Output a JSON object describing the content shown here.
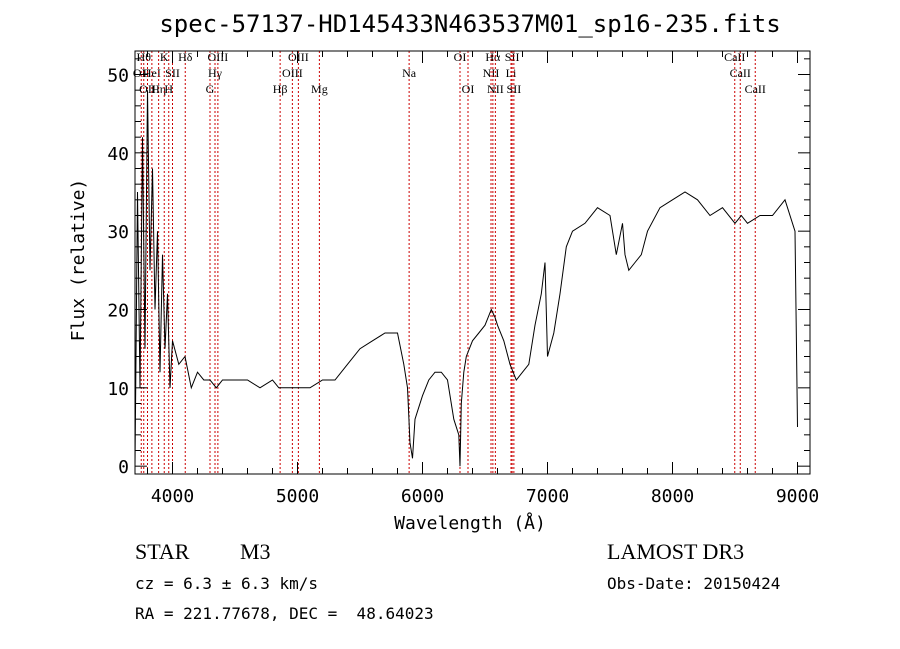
{
  "chart_data": {
    "type": "line",
    "title": "spec-57137-HD145433N463537M01_sp16-235.fits",
    "xlabel": "Wavelength (Å)",
    "ylabel": "Flux (relative)",
    "xlim": [
      3700,
      9100
    ],
    "ylim": [
      -1,
      53
    ],
    "xticks": [
      4000,
      5000,
      6000,
      7000,
      8000,
      9000
    ],
    "yticks": [
      0,
      10,
      20,
      30,
      40,
      50
    ],
    "grid": false,
    "series": [
      {
        "x": [
          3700,
          3720,
          3740,
          3760,
          3780,
          3800,
          3820,
          3840,
          3860,
          3880,
          3900,
          3920,
          3940,
          3960,
          3980,
          4000,
          4050,
          4100,
          4150,
          4200,
          4250,
          4300,
          4350,
          4400,
          4500,
          4600,
          4700,
          4800,
          4850,
          4900,
          5000,
          5100,
          5200,
          5300,
          5400,
          5500,
          5600,
          5700,
          5800,
          5850,
          5880,
          5900,
          5920,
          5940,
          5960,
          6000,
          6050,
          6100,
          6150,
          6200,
          6250,
          6290,
          6300,
          6310,
          6330,
          6350,
          6400,
          6450,
          6500,
          6550,
          6580,
          6600,
          6650,
          6700,
          6750,
          6800,
          6850,
          6900,
          6950,
          6980,
          7000,
          7050,
          7100,
          7150,
          7200,
          7300,
          7400,
          7500,
          7550,
          7600,
          7620,
          7650,
          7700,
          7750,
          7800,
          7900,
          8000,
          8100,
          8200,
          8300,
          8400,
          8500,
          8550,
          8600,
          8700,
          8800,
          8900,
          8980,
          9000
        ],
        "values": [
          0,
          35,
          10,
          42,
          15,
          48,
          25,
          38,
          20,
          30,
          12,
          27,
          15,
          22,
          10,
          16,
          13,
          14,
          10,
          12,
          11,
          11,
          10,
          11,
          11,
          11,
          10,
          11,
          10,
          10,
          10,
          10,
          11,
          11,
          13,
          15,
          16,
          17,
          17,
          13,
          10,
          3,
          1,
          6,
          7,
          9,
          11,
          12,
          12,
          11,
          6,
          4,
          0,
          8,
          12,
          14,
          16,
          17,
          18,
          20,
          19,
          18,
          16,
          13,
          11,
          12,
          13,
          18,
          22,
          26,
          14,
          17,
          22,
          28,
          30,
          31,
          33,
          32,
          27,
          31,
          27,
          25,
          26,
          27,
          30,
          33,
          34,
          35,
          34,
          32,
          33,
          31,
          32,
          31,
          32,
          32,
          34,
          30,
          5
        ]
      }
    ],
    "line_labels": [
      {
        "wavelength": 3750,
        "text": "OII",
        "row": 1
      },
      {
        "wavelength": 3770,
        "text": "Hθ",
        "row": 0
      },
      {
        "wavelength": 3800,
        "text": "OII",
        "row": 2
      },
      {
        "wavelength": 3835,
        "text": "HeI",
        "row": 1
      },
      {
        "wavelength": 3889,
        "text": "Hη",
        "row": 2
      },
      {
        "wavelength": 3934,
        "text": "K",
        "row": 0
      },
      {
        "wavelength": 3970,
        "text": "H",
        "row": 2
      },
      {
        "wavelength": 4000,
        "text": "SII",
        "row": 1
      },
      {
        "wavelength": 4102,
        "text": "Hδ",
        "row": 0
      },
      {
        "wavelength": 4300,
        "text": "G",
        "row": 2
      },
      {
        "wavelength": 4340,
        "text": "Hγ",
        "row": 1
      },
      {
        "wavelength": 4363,
        "text": "OIII",
        "row": 0
      },
      {
        "wavelength": 4861,
        "text": "Hβ",
        "row": 2
      },
      {
        "wavelength": 4959,
        "text": "OIII",
        "row": 1
      },
      {
        "wavelength": 5007,
        "text": "OIII",
        "row": 0
      },
      {
        "wavelength": 5175,
        "text": "Mg",
        "row": 2
      },
      {
        "wavelength": 5893,
        "text": "Na",
        "row": 1
      },
      {
        "wavelength": 6300,
        "text": "OI",
        "row": 0
      },
      {
        "wavelength": 6364,
        "text": "OI",
        "row": 2
      },
      {
        "wavelength": 6548,
        "text": "NII",
        "row": 1
      },
      {
        "wavelength": 6563,
        "text": "Hα",
        "row": 0
      },
      {
        "wavelength": 6583,
        "text": "NII",
        "row": 2
      },
      {
        "wavelength": 6708,
        "text": "Li",
        "row": 1
      },
      {
        "wavelength": 6717,
        "text": "SII",
        "row": 0
      },
      {
        "wavelength": 6731,
        "text": "SII",
        "row": 2
      },
      {
        "wavelength": 8498,
        "text": "CaII",
        "row": 0
      },
      {
        "wavelength": 8542,
        "text": "CaII",
        "row": 1
      },
      {
        "wavelength": 8662,
        "text": "CaII",
        "row": 2
      }
    ],
    "colors": {
      "spectrum": "#000000",
      "line_markers": "#cc0000"
    }
  },
  "info": {
    "object_type": "STAR",
    "subclass": "M3",
    "survey": "LAMOST DR3",
    "cz": "cz = 6.3 ± 6.3 km/s",
    "obs_date": "Obs-Date: 20150424",
    "coords": "RA = 221.77678, DEC =  48.64023"
  }
}
